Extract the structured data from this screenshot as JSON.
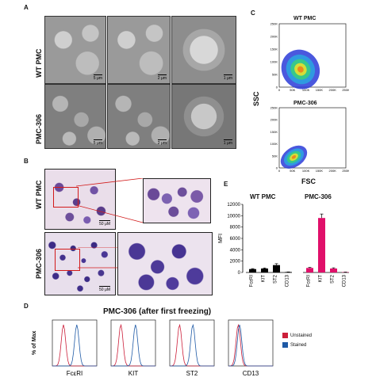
{
  "panels": {
    "a": {
      "letter": "A",
      "rows": [
        "WT PMC",
        "PMC-306"
      ],
      "scale_labels": [
        "5 μm",
        "2 μm",
        "1 μm",
        "5 μm",
        "2 μm",
        "1 μm"
      ]
    },
    "b": {
      "letter": "B",
      "rows": [
        "WT PMC",
        "PMC-306"
      ],
      "scale_labels": [
        "50 μM",
        "50 μM"
      ]
    },
    "c": {
      "letter": "C",
      "plots": [
        "WT PMC",
        "PMC-306"
      ],
      "ylabel": "SSC",
      "xlabel": "FSC",
      "ticks": [
        "0",
        "50K",
        "100K",
        "150K",
        "200K",
        "250K"
      ]
    },
    "d": {
      "letter": "D",
      "title": "PMC-306 (after first freezing)",
      "ylabel": "% of Max",
      "markers": [
        "FcεRI",
        "KIT",
        "ST2",
        "CD13"
      ],
      "legend": [
        {
          "label": "Unstained",
          "color": "#cc1f3a"
        },
        {
          "label": "Stained",
          "color": "#1f5aa6"
        }
      ]
    },
    "e": {
      "letter": "E"
    }
  },
  "chart_data": [
    {
      "type": "bar",
      "panel": "E",
      "ylabel": "MFI",
      "ylim": [
        0,
        12000
      ],
      "yticks": [
        0,
        2000,
        4000,
        6000,
        8000,
        10000,
        12000
      ],
      "categories": [
        "FcεRI",
        "KIT",
        "ST2",
        "CD13"
      ],
      "series": [
        {
          "name": "WT PMC",
          "color": "#000000",
          "values": [
            600,
            700,
            1300,
            80
          ],
          "errors": [
            80,
            100,
            250,
            20
          ]
        },
        {
          "name": "PMC-306",
          "color": "#e0106a",
          "values": [
            800,
            9600,
            700,
            60
          ],
          "errors": [
            100,
            700,
            120,
            20
          ]
        }
      ]
    }
  ]
}
